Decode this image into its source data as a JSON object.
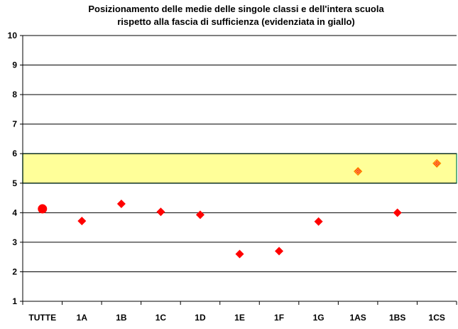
{
  "chart_data": {
    "type": "scatter",
    "title_lines": [
      "Posizionamento delle medie delle singole classi e dell'intera scuola",
      "rispetto alla fascia di sufficienza (evidenziata in giallo)"
    ],
    "categories": [
      "TUTTE",
      "1A",
      "1B",
      "1C",
      "1D",
      "1E",
      "1F",
      "1G",
      "1AS",
      "1BS",
      "1CS"
    ],
    "values": [
      4.13,
      3.72,
      4.3,
      4.03,
      3.93,
      2.6,
      2.7,
      3.7,
      5.4,
      4.0,
      5.67
    ],
    "ylim": [
      1,
      10
    ],
    "yticks": [
      1,
      2,
      3,
      4,
      5,
      6,
      7,
      8,
      9,
      10
    ],
    "grid": true,
    "legend": "none",
    "sufficiency_band": [
      5,
      6
    ],
    "marker_styles": [
      "circle",
      "diamond",
      "diamond",
      "diamond",
      "diamond",
      "diamond",
      "diamond",
      "diamond",
      "diamond-hatched",
      "diamond",
      "diamond-hatched"
    ],
    "colors": {
      "marker": "#ff0000",
      "marker_hatched": "#ff9900",
      "band_fill": "#ffff99",
      "band_edge": "#339966",
      "grid": "#000000"
    }
  }
}
